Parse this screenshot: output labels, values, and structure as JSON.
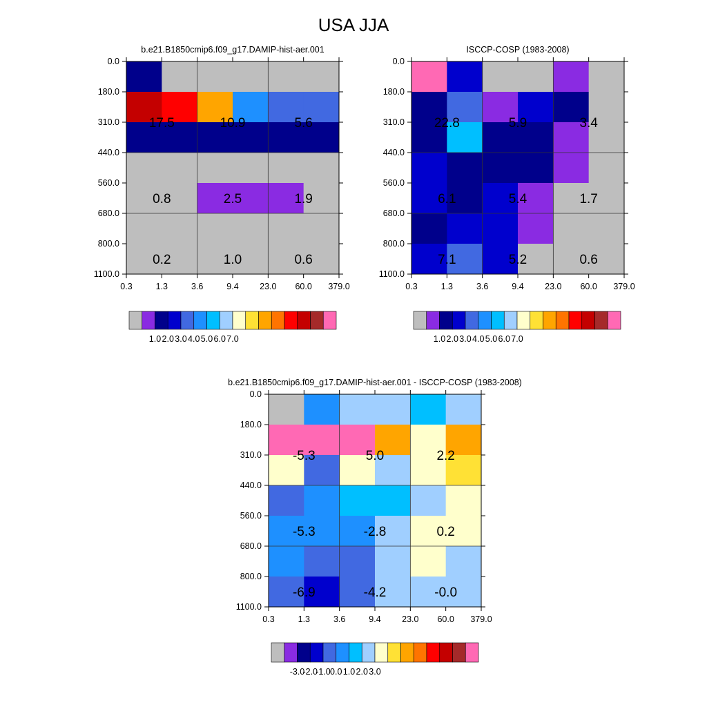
{
  "figure_title": "USA JJA",
  "colors": {
    "palette": [
      "#bebebe",
      "#8a2be2",
      "#00008b",
      "#0000cd",
      "#4169e1",
      "#1e90ff",
      "#00bfff",
      "#a0cfff",
      "#ffffcc",
      "#ffe135",
      "#ffa500",
      "#ff7400",
      "#ff0000",
      "#c40000",
      "#a52a2a",
      "#ff69b4"
    ],
    "diff_palette": [
      "#bebebe",
      "#8a2be2",
      "#00008b",
      "#0000cd",
      "#4169e1",
      "#1e90ff",
      "#00bfff",
      "#a0cfff",
      "#ffffcc",
      "#ffe135",
      "#ffa500",
      "#ff7400",
      "#ff0000",
      "#c40000",
      "#a52a2a",
      "#ff69b4"
    ]
  },
  "chart_data": [
    {
      "type": "heatmap",
      "title": "b.e21.B1850cmip6.f09_g17.DAMIP-hist-aer.001",
      "x_ticks": [
        "0.3",
        "1.3",
        "3.6",
        "9.4",
        "23.0",
        "60.0",
        "379.0"
      ],
      "y_ticks": [
        "0.0",
        "180.0",
        "310.0",
        "440.0",
        "560.0",
        "680.0",
        "800.0",
        "1100.0"
      ],
      "cells": [
        [
          2,
          0,
          0,
          0,
          0,
          0
        ],
        [
          13,
          12,
          10,
          5,
          4,
          4
        ],
        [
          2,
          2,
          2,
          2,
          2,
          2
        ],
        [
          0,
          0,
          0,
          0,
          0,
          0
        ],
        [
          0,
          0,
          1,
          1,
          1,
          0
        ],
        [
          0,
          0,
          0,
          0,
          0,
          0
        ],
        [
          0,
          0,
          0,
          0,
          0,
          0
        ]
      ],
      "labels": [
        {
          "row": 1.5,
          "col": 1,
          "text": "17.5"
        },
        {
          "row": 1.5,
          "col": 3,
          "text": "10.9"
        },
        {
          "row": 1.5,
          "col": 5,
          "text": "5.6"
        },
        {
          "row": 4,
          "col": 1,
          "text": "0.8"
        },
        {
          "row": 4,
          "col": 3,
          "text": "2.5"
        },
        {
          "row": 4,
          "col": 5,
          "text": "1.9"
        },
        {
          "row": 6,
          "col": 1,
          "text": "0.2"
        },
        {
          "row": 6,
          "col": 3,
          "text": "1.0"
        },
        {
          "row": 6,
          "col": 5,
          "text": "0.6"
        }
      ],
      "colorbar_labels": [
        "1.0",
        "2.0",
        "3.0",
        "4.0",
        "5.0",
        "6.0",
        "7.0"
      ]
    },
    {
      "type": "heatmap",
      "title": "ISCCP-COSP (1983-2008)",
      "x_ticks": [
        "0.3",
        "1.3",
        "3.6",
        "9.4",
        "23.0",
        "60.0",
        "379.0"
      ],
      "y_ticks": [
        "0.0",
        "180.0",
        "310.0",
        "440.0",
        "560.0",
        "680.0",
        "800.0",
        "1100.0"
      ],
      "cells": [
        [
          15,
          3,
          0,
          0,
          1,
          0
        ],
        [
          2,
          4,
          1,
          3,
          2,
          0
        ],
        [
          2,
          6,
          2,
          2,
          1,
          0
        ],
        [
          3,
          2,
          2,
          2,
          1,
          0
        ],
        [
          3,
          2,
          3,
          1,
          0,
          0
        ],
        [
          2,
          3,
          3,
          1,
          0,
          0
        ],
        [
          3,
          4,
          3,
          0,
          0,
          0
        ]
      ],
      "labels": [
        {
          "row": 1.5,
          "col": 1,
          "text": "22.8"
        },
        {
          "row": 1.5,
          "col": 3,
          "text": "5.9"
        },
        {
          "row": 1.5,
          "col": 5,
          "text": "3.4"
        },
        {
          "row": 4,
          "col": 1,
          "text": "6.1"
        },
        {
          "row": 4,
          "col": 3,
          "text": "5.4"
        },
        {
          "row": 4,
          "col": 5,
          "text": "1.7"
        },
        {
          "row": 6,
          "col": 1,
          "text": "7.1"
        },
        {
          "row": 6,
          "col": 3,
          "text": "5.2"
        },
        {
          "row": 6,
          "col": 5,
          "text": "0.6"
        }
      ],
      "colorbar_labels": [
        "1.0",
        "2.0",
        "3.0",
        "4.0",
        "5.0",
        "6.0",
        "7.0"
      ]
    },
    {
      "type": "heatmap",
      "title": "b.e21.B1850cmip6.f09_g17.DAMIP-hist-aer.001 - ISCCP-COSP (1983-2008)",
      "x_ticks": [
        "0.3",
        "1.3",
        "3.6",
        "9.4",
        "23.0",
        "60.0",
        "379.0"
      ],
      "y_ticks": [
        "0.0",
        "180.0",
        "310.0",
        "440.0",
        "560.0",
        "680.0",
        "800.0",
        "1100.0"
      ],
      "cells": [
        [
          0,
          5,
          7,
          7,
          6,
          7
        ],
        [
          15,
          15,
          15,
          10,
          8,
          10
        ],
        [
          8,
          4,
          8,
          7,
          8,
          9
        ],
        [
          4,
          5,
          6,
          6,
          7,
          8
        ],
        [
          5,
          5,
          5,
          7,
          8,
          8
        ],
        [
          5,
          4,
          4,
          7,
          8,
          7
        ],
        [
          4,
          3,
          4,
          7,
          7,
          7
        ]
      ],
      "labels": [
        {
          "row": 1.5,
          "col": 1,
          "text": "-5.3"
        },
        {
          "row": 1.5,
          "col": 3,
          "text": "5.0"
        },
        {
          "row": 1.5,
          "col": 5,
          "text": "2.2"
        },
        {
          "row": 4,
          "col": 1,
          "text": "-5.3"
        },
        {
          "row": 4,
          "col": 3,
          "text": "-2.8"
        },
        {
          "row": 4,
          "col": 5,
          "text": "0.2"
        },
        {
          "row": 6,
          "col": 1,
          "text": "-6.9"
        },
        {
          "row": 6,
          "col": 3,
          "text": "-4.2"
        },
        {
          "row": 6,
          "col": 5,
          "text": "-0.0"
        }
      ],
      "colorbar_labels": [
        "-3.0",
        "-2.0",
        "-1.0",
        "0.0",
        "1.0",
        "2.0",
        "3.0"
      ]
    }
  ]
}
